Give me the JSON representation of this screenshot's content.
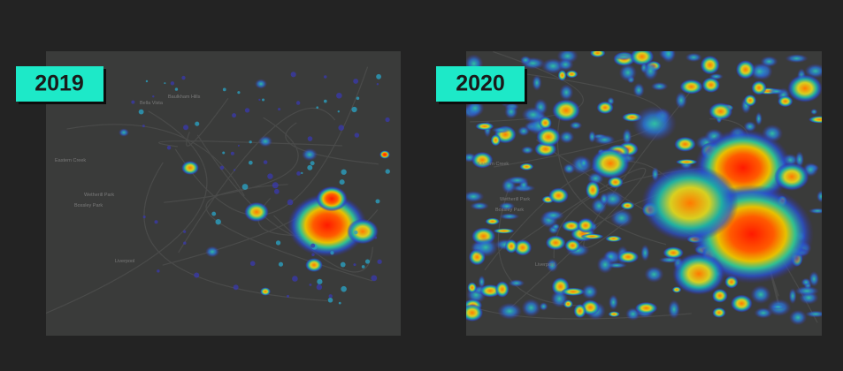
{
  "panels": [
    {
      "year": "2019",
      "labels": [
        "Eastern Creek",
        "Wetherill Park",
        "Bossley Park",
        "Bella Vista",
        "Baulkham Hills",
        "Liverpool"
      ]
    },
    {
      "year": "2020",
      "labels": [
        "Eastern Creek",
        "Wetherill Park",
        "Bossley Park",
        "Liverpool"
      ]
    }
  ]
}
